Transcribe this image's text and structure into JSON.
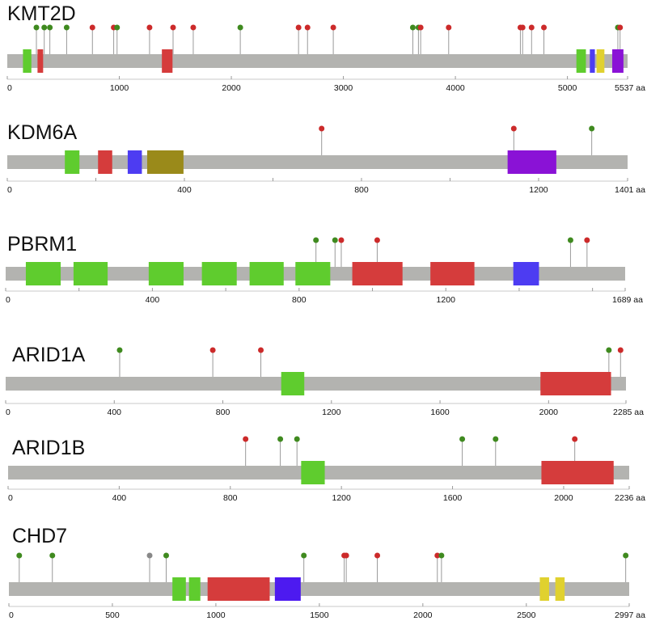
{
  "figure": {
    "background": "#ffffff",
    "backbone_color": "#b3b3b0",
    "stem_color": "#9a9a9a"
  },
  "tracks": [
    {
      "gene": "KMT2D",
      "length": 5537,
      "end_label": "5537 aa",
      "ticks": [
        0,
        1000,
        2000,
        3000,
        4000,
        5000
      ],
      "domains": [
        {
          "start": 140,
          "end": 215,
          "color": "#5fcc2e"
        },
        {
          "start": 270,
          "end": 320,
          "color": "#d53c3c"
        },
        {
          "start": 1380,
          "end": 1475,
          "color": "#d53c3c"
        },
        {
          "start": 5080,
          "end": 5165,
          "color": "#5fcc2e"
        },
        {
          "start": 5200,
          "end": 5245,
          "color": "#4d3cf2"
        },
        {
          "start": 5260,
          "end": 5330,
          "color": "#e0d12f"
        },
        {
          "start": 5400,
          "end": 5500,
          "color": "#8a12d6"
        }
      ],
      "mutations": [
        {
          "pos": 260,
          "color": "#3f8a1f"
        },
        {
          "pos": 330,
          "color": "#3f8a1f"
        },
        {
          "pos": 380,
          "color": "#3f8a1f"
        },
        {
          "pos": 530,
          "color": "#3f8a1f"
        },
        {
          "pos": 760,
          "color": "#cc2a2a"
        },
        {
          "pos": 950,
          "color": "#cc2a2a"
        },
        {
          "pos": 980,
          "color": "#3f8a1f"
        },
        {
          "pos": 1270,
          "color": "#cc2a2a"
        },
        {
          "pos": 1480,
          "color": "#cc2a2a"
        },
        {
          "pos": 1660,
          "color": "#cc2a2a"
        },
        {
          "pos": 2080,
          "color": "#3f8a1f"
        },
        {
          "pos": 2600,
          "color": "#cc2a2a"
        },
        {
          "pos": 2680,
          "color": "#cc2a2a"
        },
        {
          "pos": 2910,
          "color": "#cc2a2a"
        },
        {
          "pos": 3620,
          "color": "#3f8a1f"
        },
        {
          "pos": 3670,
          "color": "#3f8a1f"
        },
        {
          "pos": 3690,
          "color": "#cc2a2a"
        },
        {
          "pos": 3940,
          "color": "#cc2a2a"
        },
        {
          "pos": 4580,
          "color": "#cc2a2a"
        },
        {
          "pos": 4600,
          "color": "#cc2a2a"
        },
        {
          "pos": 4680,
          "color": "#cc2a2a"
        },
        {
          "pos": 4790,
          "color": "#cc2a2a"
        },
        {
          "pos": 5450,
          "color": "#3f8a1f"
        },
        {
          "pos": 5470,
          "color": "#cc2a2a"
        }
      ]
    },
    {
      "gene": "KDM6A",
      "length": 1401,
      "end_label": "1401 aa",
      "ticks": [
        0,
        200,
        400,
        600,
        800,
        1000,
        1200
      ],
      "tick_labels": [
        0,
        400,
        800,
        1200
      ],
      "domains": [
        {
          "start": 130,
          "end": 163,
          "color": "#5fcc2e"
        },
        {
          "start": 205,
          "end": 237,
          "color": "#d53c3c"
        },
        {
          "start": 272,
          "end": 304,
          "color": "#4d3cf2"
        },
        {
          "start": 316,
          "end": 398,
          "color": "#9a8a1a"
        },
        {
          "start": 1130,
          "end": 1240,
          "color": "#8a12d6"
        }
      ],
      "mutations": [
        {
          "pos": 710,
          "color": "#cc2a2a"
        },
        {
          "pos": 1144,
          "color": "#cc2a2a"
        },
        {
          "pos": 1320,
          "color": "#3f8a1f"
        }
      ]
    },
    {
      "gene": "PBRM1",
      "length": 1689,
      "end_label": "1689 aa",
      "ticks": [
        0,
        200,
        400,
        600,
        800,
        1000,
        1200,
        1400,
        1600
      ],
      "tick_labels": [
        0,
        400,
        800,
        1200
      ],
      "domains": [
        {
          "start": 55,
          "end": 150,
          "color": "#5fcc2e"
        },
        {
          "start": 185,
          "end": 278,
          "color": "#5fcc2e"
        },
        {
          "start": 390,
          "end": 485,
          "color": "#5fcc2e"
        },
        {
          "start": 535,
          "end": 630,
          "color": "#5fcc2e"
        },
        {
          "start": 665,
          "end": 758,
          "color": "#5fcc2e"
        },
        {
          "start": 790,
          "end": 885,
          "color": "#5fcc2e"
        },
        {
          "start": 945,
          "end": 1082,
          "color": "#d53c3c"
        },
        {
          "start": 1158,
          "end": 1278,
          "color": "#d53c3c"
        },
        {
          "start": 1384,
          "end": 1454,
          "color": "#4d3cf2"
        }
      ],
      "mutations": [
        {
          "pos": 846,
          "color": "#3f8a1f"
        },
        {
          "pos": 898,
          "color": "#3f8a1f"
        },
        {
          "pos": 915,
          "color": "#cc2a2a"
        },
        {
          "pos": 1013,
          "color": "#cc2a2a"
        },
        {
          "pos": 1540,
          "color": "#3f8a1f"
        },
        {
          "pos": 1585,
          "color": "#cc2a2a"
        }
      ]
    },
    {
      "gene": "ARID1A",
      "length": 2285,
      "end_label": "2285 aa",
      "ticks": [
        0,
        400,
        800,
        1200,
        1600,
        2000
      ],
      "domains": [
        {
          "start": 1015,
          "end": 1100,
          "color": "#5fcc2e"
        },
        {
          "start": 1970,
          "end": 2230,
          "color": "#d53c3c"
        }
      ],
      "mutations": [
        {
          "pos": 420,
          "color": "#3f8a1f"
        },
        {
          "pos": 763,
          "color": "#cc2a2a"
        },
        {
          "pos": 940,
          "color": "#cc2a2a"
        },
        {
          "pos": 2222,
          "color": "#3f8a1f"
        },
        {
          "pos": 2265,
          "color": "#cc2a2a"
        }
      ]
    },
    {
      "gene": "ARID1B",
      "length": 2236,
      "end_label": "2236 aa",
      "ticks": [
        0,
        400,
        800,
        1200,
        1600,
        2000
      ],
      "domains": [
        {
          "start": 1055,
          "end": 1140,
          "color": "#5fcc2e"
        },
        {
          "start": 1920,
          "end": 2180,
          "color": "#d53c3c"
        }
      ],
      "mutations": [
        {
          "pos": 855,
          "color": "#cc2a2a"
        },
        {
          "pos": 980,
          "color": "#3f8a1f"
        },
        {
          "pos": 1040,
          "color": "#3f8a1f"
        },
        {
          "pos": 1635,
          "color": "#3f8a1f"
        },
        {
          "pos": 1755,
          "color": "#3f8a1f"
        },
        {
          "pos": 2040,
          "color": "#cc2a2a"
        }
      ]
    },
    {
      "gene": "CHD7",
      "length": 2997,
      "end_label": "2997 aa",
      "ticks": [
        0,
        500,
        1000,
        1500,
        2000,
        2500
      ],
      "domains": [
        {
          "start": 790,
          "end": 855,
          "color": "#5fcc2e"
        },
        {
          "start": 870,
          "end": 925,
          "color": "#5fcc2e"
        },
        {
          "start": 960,
          "end": 1260,
          "color": "#d53c3c"
        },
        {
          "start": 1285,
          "end": 1410,
          "color": "#4d1af0"
        },
        {
          "start": 2565,
          "end": 2610,
          "color": "#e0d12f"
        },
        {
          "start": 2640,
          "end": 2685,
          "color": "#e0d12f"
        }
      ],
      "mutations": [
        {
          "pos": 50,
          "color": "#3f8a1f"
        },
        {
          "pos": 210,
          "color": "#3f8a1f"
        },
        {
          "pos": 680,
          "color": "#888888"
        },
        {
          "pos": 760,
          "color": "#3f8a1f"
        },
        {
          "pos": 1425,
          "color": "#3f8a1f"
        },
        {
          "pos": 1620,
          "color": "#cc2a2a"
        },
        {
          "pos": 1630,
          "color": "#cc2a2a"
        },
        {
          "pos": 1780,
          "color": "#cc2a2a"
        },
        {
          "pos": 2070,
          "color": "#cc2a2a"
        },
        {
          "pos": 2090,
          "color": "#3f8a1f"
        },
        {
          "pos": 2980,
          "color": "#3f8a1f"
        }
      ]
    }
  ]
}
